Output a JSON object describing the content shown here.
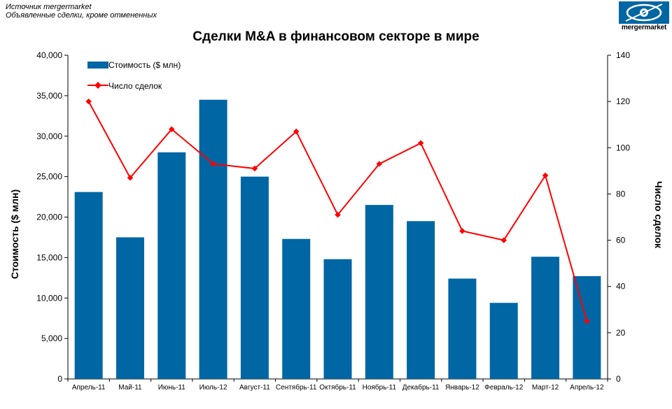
{
  "source": {
    "line1": "Источник mergermarket",
    "line2": "Объявленные сделки, кроме отмененных"
  },
  "logo": {
    "text": "mergermarket",
    "icon": "eye-logo-icon",
    "color": "#0066a4"
  },
  "colors": {
    "bar": "#0066a4",
    "line": "#ff0000",
    "axis": "#000000"
  },
  "chart_data": {
    "type": "bar",
    "title": "Сделки M&A в финансовом секторе в мире",
    "categories": [
      "Апрель-11",
      "Май-11",
      "Июнь-11",
      "Июль-12",
      "Август-11",
      "Сентябрь-11",
      "Октябрь-11",
      "Ноябрь-11",
      "Декабрь-11",
      "Январь-12",
      "Февраль-12",
      "Март-12",
      "Апрель-12"
    ],
    "ylabel": "Стоимость  ($ млн)",
    "y2label": "Число сделок",
    "ylim": [
      0,
      40000
    ],
    "y2lim": [
      0,
      140
    ],
    "yticks": [
      "0",
      "5,000",
      "10,000",
      "15,000",
      "20,000",
      "25,000",
      "30,000",
      "35,000",
      "40,000"
    ],
    "y2ticks": [
      "0",
      "20",
      "40",
      "60",
      "80",
      "100",
      "120",
      "140"
    ],
    "legend_position": "top-left",
    "grid": false,
    "series": [
      {
        "name": "Стоимость ($ млн)",
        "type": "bar",
        "axis": "left",
        "values": [
          23100,
          17500,
          28000,
          34500,
          25000,
          17300,
          14800,
          21500,
          19500,
          12400,
          9400,
          15100,
          12700
        ]
      },
      {
        "name": "Число сделок",
        "type": "line",
        "axis": "right",
        "values": [
          120,
          87,
          108,
          93,
          91,
          107,
          71,
          93,
          102,
          64,
          60,
          88,
          25
        ]
      }
    ]
  }
}
